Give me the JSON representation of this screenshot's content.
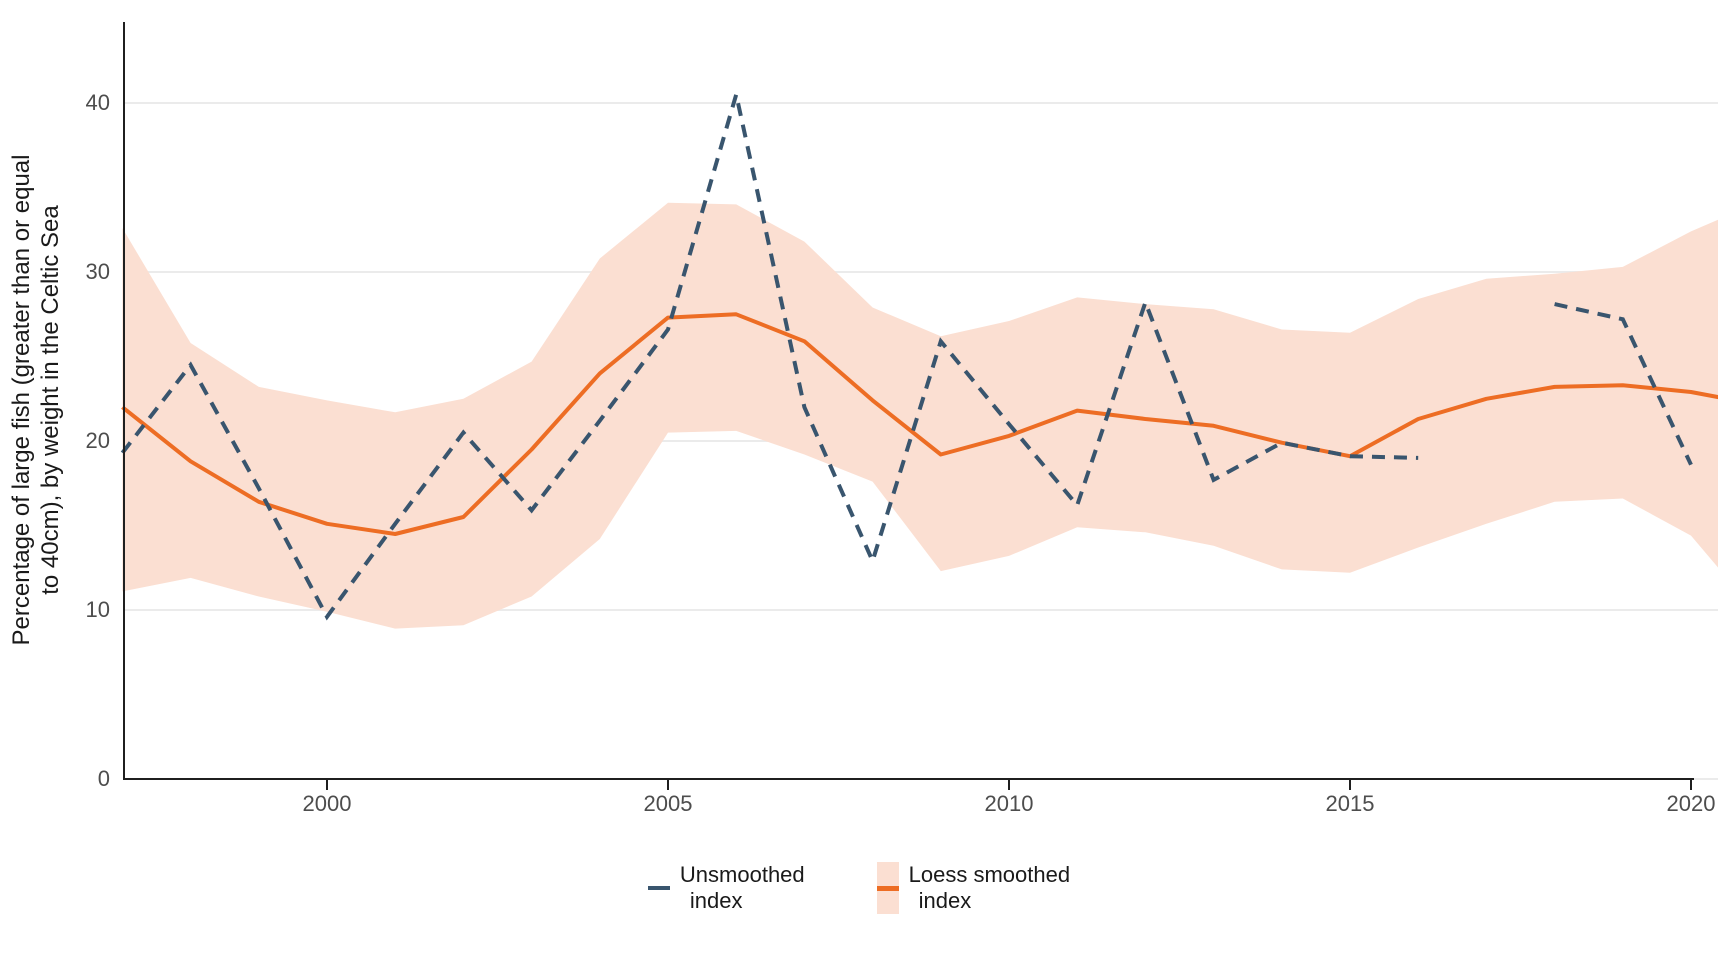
{
  "figure": {
    "y_axis_title_line1": "Percentage of large fish (greater than or equal",
    "y_axis_title_line2": "to 40cm), by weight in the Celtic Sea"
  },
  "legend": {
    "items": [
      {
        "key": "dashed-line-swatch",
        "label_line1": "Unsmoothed",
        "label_line2": "index"
      },
      {
        "key": "ribbon-swatch",
        "label_line1": "Loess smoothed",
        "label_line2": "index"
      }
    ]
  },
  "colors": {
    "unsmoothed_line": "#39556e",
    "loess_line": "#ed6d24",
    "ribbon_fill": "#fbdfd2",
    "gridline": "#ebebeb",
    "axis_line": "#1f1f1f",
    "tick_label": "#4d4d4d",
    "text": "#1a1a1a"
  },
  "chart_data": {
    "type": "line",
    "title": "",
    "xlabel": "",
    "ylabel": "Percentage of large fish (greater than or equal to 40cm), by weight in the Celtic Sea",
    "x": [
      1997,
      1998,
      1999,
      2000,
      2001,
      2002,
      2003,
      2004,
      2005,
      2006,
      2007,
      2008,
      2009,
      2010,
      2011,
      2012,
      2013,
      2014,
      2015,
      2016,
      2017,
      2018,
      2019,
      2020
    ],
    "series": [
      {
        "name": "Unsmoothed index",
        "style": "dashed",
        "values": [
          19.3,
          24.5,
          17.2,
          9.6,
          15.1,
          20.5,
          15.9,
          21.2,
          26.6,
          40.5,
          22.0,
          12.9,
          25.9,
          21.0,
          16.2,
          28.2,
          17.7,
          19.9,
          19.1,
          19.0,
          null,
          28.1,
          27.2,
          18.6
        ]
      },
      {
        "name": "Loess smoothed index",
        "style": "solid",
        "values": [
          22.0,
          18.8,
          16.4,
          15.1,
          14.5,
          15.5,
          19.5,
          24.0,
          27.3,
          27.5,
          25.9,
          22.4,
          19.2,
          20.3,
          21.8,
          21.3,
          20.9,
          19.9,
          19.1,
          21.3,
          22.5,
          23.2,
          23.3,
          22.9
        ]
      }
    ],
    "ribbon": {
      "name": "Loess smoothed index confidence band",
      "upper": [
        32.6,
        25.8,
        23.2,
        22.4,
        21.7,
        22.5,
        24.7,
        30.8,
        34.1,
        34.0,
        31.8,
        27.9,
        26.2,
        27.1,
        28.5,
        28.1,
        27.8,
        26.6,
        26.4,
        28.4,
        29.6,
        29.9,
        30.3,
        32.4
      ],
      "lower": [
        11.1,
        11.9,
        10.8,
        9.9,
        8.9,
        9.1,
        10.8,
        14.2,
        20.5,
        20.6,
        19.2,
        17.6,
        12.3,
        13.2,
        14.9,
        14.6,
        13.8,
        12.4,
        12.2,
        13.7,
        15.1,
        16.4,
        16.6,
        14.4
      ]
    },
    "right_edge_extension": {
      "x": 2020.4,
      "loess": 22.6,
      "upper": 33.1,
      "lower": 12.5
    },
    "xticks": [
      2000,
      2005,
      2010,
      2015,
      2020
    ],
    "yticks": [
      0,
      10,
      20,
      30,
      40
    ],
    "xlim": [
      1997,
      2020.4
    ],
    "ylim": [
      0,
      44.8
    ],
    "grid": "horizontal",
    "legend_position": "bottom"
  }
}
